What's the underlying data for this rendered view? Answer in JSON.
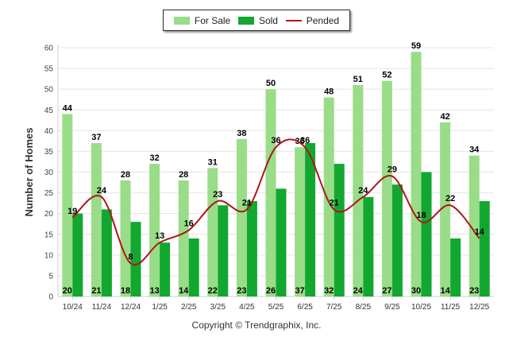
{
  "chart_data": {
    "type": "bar",
    "categories": [
      "10/24",
      "11/24",
      "12/24",
      "1/25",
      "2/25",
      "3/25",
      "4/25",
      "5/25",
      "6/25",
      "7/25",
      "8/25",
      "9/25",
      "10/25",
      "11/25",
      "12/25"
    ],
    "series": [
      {
        "name": "For Sale",
        "type": "bar",
        "color": "#99dd88",
        "values": [
          44,
          37,
          28,
          32,
          28,
          31,
          38,
          50,
          36,
          48,
          51,
          52,
          59,
          42,
          34
        ]
      },
      {
        "name": "Sold",
        "type": "bar",
        "color": "#12a830",
        "values": [
          20,
          21,
          18,
          13,
          14,
          22,
          23,
          26,
          37,
          32,
          24,
          27,
          30,
          14,
          23
        ]
      },
      {
        "name": "Pended",
        "type": "line",
        "color": "#b0141a",
        "values": [
          19,
          24,
          8,
          13,
          16,
          23,
          21,
          36,
          36,
          21,
          24,
          29,
          18,
          22,
          14
        ]
      }
    ],
    "ylabel": "Number of Homes",
    "xlabel": "",
    "ylim": [
      0,
      60
    ],
    "yticks": [
      0,
      5,
      10,
      15,
      20,
      25,
      30,
      35,
      40,
      45,
      50,
      55,
      60
    ],
    "legend_position": "top-center"
  },
  "legend": {
    "items": [
      {
        "label": "For Sale",
        "color": "#99dd88"
      },
      {
        "label": "Sold",
        "color": "#12a830"
      },
      {
        "label": "Pended",
        "color": "#b0141a"
      }
    ]
  },
  "footer": {
    "copyright": "Copyright © Trendgraphix, Inc."
  }
}
